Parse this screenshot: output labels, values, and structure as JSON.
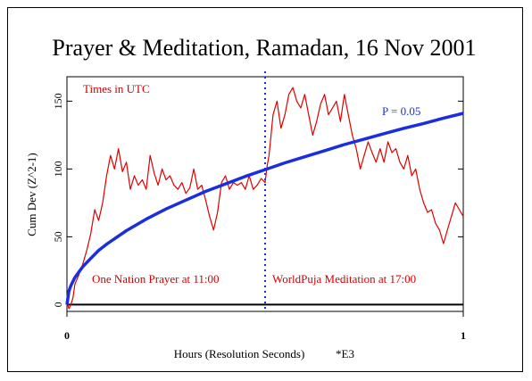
{
  "chart_data": {
    "type": "line",
    "title": "Prayer & Meditation, Ramadan, 16 Nov 2001",
    "xlabel": "Hours (Resolution Seconds)",
    "xlabel_suffix": "*E3",
    "ylabel": "Cum Dev (Z^2-1)",
    "xlim": [
      0,
      1
    ],
    "ylim": [
      -5,
      168
    ],
    "x_ticks": [
      {
        "value": 0,
        "label": "0"
      },
      {
        "value": 1,
        "label": "1"
      }
    ],
    "y_ticks": [
      {
        "value": 0,
        "label": "0"
      },
      {
        "value": 50,
        "label": "50"
      },
      {
        "value": 100,
        "label": "100"
      },
      {
        "value": 150,
        "label": "150"
      }
    ],
    "grid": false,
    "annotations": {
      "times": "Times in UTC",
      "prayer": "One Nation Prayer at 11:00",
      "meditation": "WorldPuja Meditation at 17:00",
      "p_label": "P = 0.05"
    },
    "event_line_x": 0.5,
    "series": [
      {
        "role": "cumulative deviation",
        "color": "#e00000",
        "x": [
          0,
          0.005,
          0.01,
          0.015,
          0.02,
          0.03,
          0.04,
          0.05,
          0.06,
          0.07,
          0.08,
          0.09,
          0.1,
          0.11,
          0.12,
          0.13,
          0.14,
          0.15,
          0.16,
          0.17,
          0.18,
          0.19,
          0.2,
          0.21,
          0.22,
          0.23,
          0.24,
          0.25,
          0.26,
          0.27,
          0.28,
          0.29,
          0.3,
          0.31,
          0.32,
          0.33,
          0.34,
          0.35,
          0.36,
          0.37,
          0.38,
          0.39,
          0.4,
          0.41,
          0.42,
          0.43,
          0.44,
          0.45,
          0.46,
          0.47,
          0.48,
          0.49,
          0.5,
          0.505,
          0.51,
          0.52,
          0.53,
          0.54,
          0.55,
          0.56,
          0.57,
          0.58,
          0.59,
          0.6,
          0.61,
          0.62,
          0.63,
          0.64,
          0.65,
          0.66,
          0.67,
          0.68,
          0.69,
          0.7,
          0.71,
          0.72,
          0.73,
          0.74,
          0.75,
          0.76,
          0.77,
          0.78,
          0.79,
          0.8,
          0.81,
          0.82,
          0.83,
          0.84,
          0.85,
          0.86,
          0.87,
          0.88,
          0.89,
          0.9,
          0.91,
          0.92,
          0.93,
          0.94,
          0.95,
          0.96,
          0.97,
          0.98,
          0.99,
          1.0
        ],
        "values": [
          2,
          -3,
          0,
          5,
          15,
          22,
          30,
          40,
          52,
          70,
          62,
          75,
          95,
          110,
          100,
          115,
          98,
          105,
          85,
          95,
          88,
          92,
          85,
          110,
          97,
          88,
          100,
          92,
          95,
          88,
          85,
          90,
          82,
          86,
          100,
          85,
          88,
          77,
          65,
          55,
          68,
          90,
          95,
          85,
          90,
          88,
          90,
          85,
          95,
          85,
          88,
          93,
          90,
          102,
          110,
          140,
          150,
          130,
          140,
          155,
          160,
          150,
          145,
          155,
          140,
          125,
          135,
          148,
          155,
          140,
          145,
          150,
          135,
          155,
          140,
          125,
          115,
          100,
          110,
          120,
          112,
          105,
          115,
          105,
          120,
          112,
          115,
          105,
          100,
          110,
          95,
          100,
          85,
          75,
          68,
          70,
          60,
          55,
          45,
          55,
          65,
          75,
          70,
          65
        ]
      },
      {
        "name": "P = 0.05",
        "role": "significance envelope",
        "color": "#1a2ee0",
        "x": [
          0,
          0.005,
          0.01,
          0.02,
          0.04,
          0.06,
          0.08,
          0.1,
          0.15,
          0.2,
          0.25,
          0.3,
          0.35,
          0.4,
          0.45,
          0.5,
          0.55,
          0.6,
          0.65,
          0.7,
          0.75,
          0.8,
          0.85,
          0.9,
          0.95,
          1.0
        ],
        "values": [
          0,
          10,
          14,
          20,
          28,
          34,
          40,
          44.5,
          54.5,
          63,
          70.5,
          77,
          83.5,
          89,
          94.5,
          99.5,
          104.5,
          109,
          113.5,
          118,
          122,
          126,
          130,
          133.5,
          137.5,
          141
        ]
      }
    ]
  }
}
